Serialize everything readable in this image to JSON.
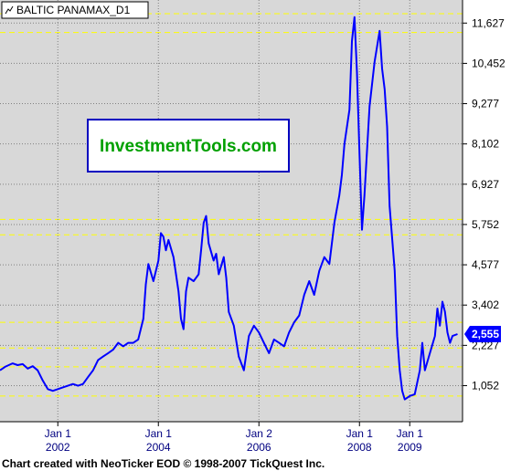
{
  "window": {
    "legend_label": "BALTIC PANAMAX_D1",
    "logo_text": "InvestmentTools.com",
    "footer_text": "Chart created with NeoTicker EOD © 1998-2007 TickQuest Inc."
  },
  "colors": {
    "plot_bg": "#d8d8d8",
    "series": "#0000ff",
    "grid": "#808080",
    "dashed_yellow": "#ffff00",
    "logo_text": "#00a000",
    "logo_border": "#0000c0",
    "last_value_bg": "#0000ff"
  },
  "chart_data": {
    "type": "line",
    "title": "",
    "xlabel": "",
    "ylabel": "",
    "ylim": [
      0,
      12300
    ],
    "xlim": [
      2000.85,
      2010.05
    ],
    "y_ticks": [
      1052,
      2227,
      3402,
      4577,
      5752,
      6927,
      8102,
      9277,
      10452,
      11627
    ],
    "y_tick_labels": [
      "1,052",
      "2,227",
      "3,402",
      "4,577",
      "5,752",
      "6,927",
      "8,102",
      "9,277",
      "10,452",
      "11,627"
    ],
    "x_ticks": [
      {
        "x": 2002.0,
        "line1": "Jan 1",
        "line2": "2002"
      },
      {
        "x": 2004.0,
        "line1": "Jan 1",
        "line2": "2004"
      },
      {
        "x": 2006.0,
        "line1": "Jan 2",
        "line2": "2006"
      },
      {
        "x": 2008.0,
        "line1": "Jan 1",
        "line2": "2008"
      },
      {
        "x": 2009.0,
        "line1": "Jan 1",
        "line2": "2009"
      }
    ],
    "last_value": 2555,
    "last_value_label": "2,555",
    "dashed_levels": [
      11900,
      11350,
      5900,
      5450,
      2900,
      2150,
      1600,
      750
    ],
    "series": [
      {
        "values": [
          [
            2000.85,
            1500
          ],
          [
            2000.95,
            1600
          ],
          [
            2001.1,
            1700
          ],
          [
            2001.2,
            1650
          ],
          [
            2001.3,
            1680
          ],
          [
            2001.4,
            1550
          ],
          [
            2001.5,
            1620
          ],
          [
            2001.6,
            1500
          ],
          [
            2001.7,
            1200
          ],
          [
            2001.8,
            950
          ],
          [
            2001.9,
            900
          ],
          [
            2002.0,
            950
          ],
          [
            2002.1,
            1000
          ],
          [
            2002.2,
            1050
          ],
          [
            2002.3,
            1100
          ],
          [
            2002.4,
            1050
          ],
          [
            2002.5,
            1100
          ],
          [
            2002.6,
            1300
          ],
          [
            2002.7,
            1500
          ],
          [
            2002.8,
            1800
          ],
          [
            2002.9,
            1900
          ],
          [
            2003.0,
            2000
          ],
          [
            2003.1,
            2100
          ],
          [
            2003.2,
            2300
          ],
          [
            2003.3,
            2200
          ],
          [
            2003.4,
            2300
          ],
          [
            2003.5,
            2300
          ],
          [
            2003.6,
            2400
          ],
          [
            2003.7,
            3000
          ],
          [
            2003.75,
            4000
          ],
          [
            2003.8,
            4600
          ],
          [
            2003.9,
            4100
          ],
          [
            2004.0,
            4700
          ],
          [
            2004.05,
            5500
          ],
          [
            2004.1,
            5400
          ],
          [
            2004.15,
            5000
          ],
          [
            2004.2,
            5300
          ],
          [
            2004.3,
            4800
          ],
          [
            2004.4,
            3800
          ],
          [
            2004.45,
            3000
          ],
          [
            2004.5,
            2700
          ],
          [
            2004.55,
            3800
          ],
          [
            2004.6,
            4200
          ],
          [
            2004.7,
            4100
          ],
          [
            2004.8,
            4300
          ],
          [
            2004.85,
            5000
          ],
          [
            2004.9,
            5800
          ],
          [
            2004.95,
            6000
          ],
          [
            2005.0,
            5200
          ],
          [
            2005.1,
            4700
          ],
          [
            2005.15,
            4900
          ],
          [
            2005.2,
            4300
          ],
          [
            2005.3,
            4800
          ],
          [
            2005.35,
            4200
          ],
          [
            2005.4,
            3200
          ],
          [
            2005.5,
            2800
          ],
          [
            2005.6,
            1900
          ],
          [
            2005.7,
            1500
          ],
          [
            2005.8,
            2500
          ],
          [
            2005.9,
            2800
          ],
          [
            2006.0,
            2600
          ],
          [
            2006.1,
            2300
          ],
          [
            2006.2,
            2000
          ],
          [
            2006.3,
            2400
          ],
          [
            2006.4,
            2300
          ],
          [
            2006.5,
            2200
          ],
          [
            2006.6,
            2600
          ],
          [
            2006.7,
            2900
          ],
          [
            2006.8,
            3100
          ],
          [
            2006.9,
            3700
          ],
          [
            2007.0,
            4100
          ],
          [
            2007.1,
            3700
          ],
          [
            2007.2,
            4400
          ],
          [
            2007.3,
            4800
          ],
          [
            2007.4,
            4600
          ],
          [
            2007.5,
            5800
          ],
          [
            2007.6,
            6600
          ],
          [
            2007.65,
            7200
          ],
          [
            2007.7,
            8100
          ],
          [
            2007.8,
            9100
          ],
          [
            2007.85,
            11100
          ],
          [
            2007.9,
            11800
          ],
          [
            2007.95,
            10200
          ],
          [
            2008.0,
            7800
          ],
          [
            2008.05,
            5600
          ],
          [
            2008.1,
            6600
          ],
          [
            2008.2,
            9200
          ],
          [
            2008.3,
            10500
          ],
          [
            2008.4,
            11400
          ],
          [
            2008.45,
            10300
          ],
          [
            2008.5,
            9700
          ],
          [
            2008.55,
            8600
          ],
          [
            2008.6,
            6300
          ],
          [
            2008.7,
            4400
          ],
          [
            2008.75,
            2500
          ],
          [
            2008.8,
            1500
          ],
          [
            2008.85,
            900
          ],
          [
            2008.9,
            650
          ],
          [
            2009.0,
            750
          ],
          [
            2009.1,
            800
          ],
          [
            2009.2,
            1500
          ],
          [
            2009.25,
            2300
          ],
          [
            2009.3,
            1500
          ],
          [
            2009.4,
            2000
          ],
          [
            2009.5,
            2500
          ],
          [
            2009.55,
            3300
          ],
          [
            2009.6,
            2800
          ],
          [
            2009.65,
            3500
          ],
          [
            2009.7,
            3200
          ],
          [
            2009.75,
            2600
          ],
          [
            2009.8,
            2300
          ],
          [
            2009.85,
            2500
          ],
          [
            2009.95,
            2555
          ]
        ]
      }
    ]
  }
}
